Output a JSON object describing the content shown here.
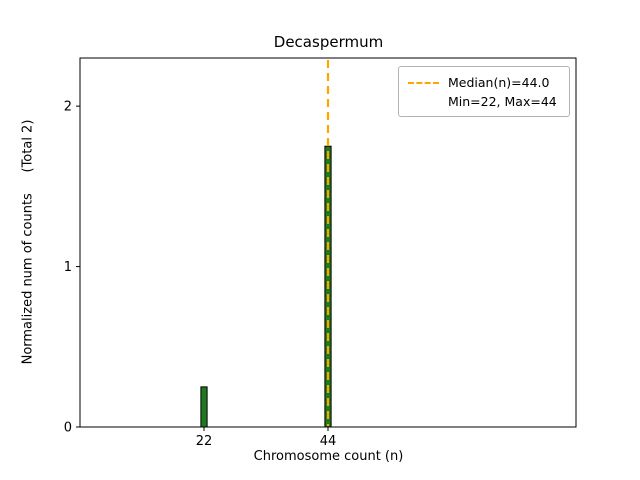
{
  "chart_data": {
    "type": "bar",
    "title": "Decaspermum",
    "xlabel": "Chromosome count (n)",
    "ylabel": "Normalized num of counts     (Total 2)",
    "x": [
      22,
      44
    ],
    "values": [
      0.25,
      1.75
    ],
    "xlim": [
      0,
      88
    ],
    "ylim": [
      0,
      2.3
    ],
    "xticks": [
      22,
      44
    ],
    "yticks": [
      0,
      1,
      2
    ],
    "bar_width": 1.1,
    "grid": false,
    "colors": {
      "bar_fill": "#1f7a1f",
      "bar_edge": "#000000",
      "median_line": "#FFA500",
      "axes": "#000000"
    },
    "median_line": {
      "x": 44.0,
      "style": "dashed",
      "label": "Median(n)=44.0"
    },
    "legend": {
      "position": "upper right",
      "entries": [
        {
          "label": "Median(n)=44.0",
          "has_line_sample": true
        },
        {
          "label": "Min=22, Max=44",
          "has_line_sample": false
        }
      ]
    }
  }
}
